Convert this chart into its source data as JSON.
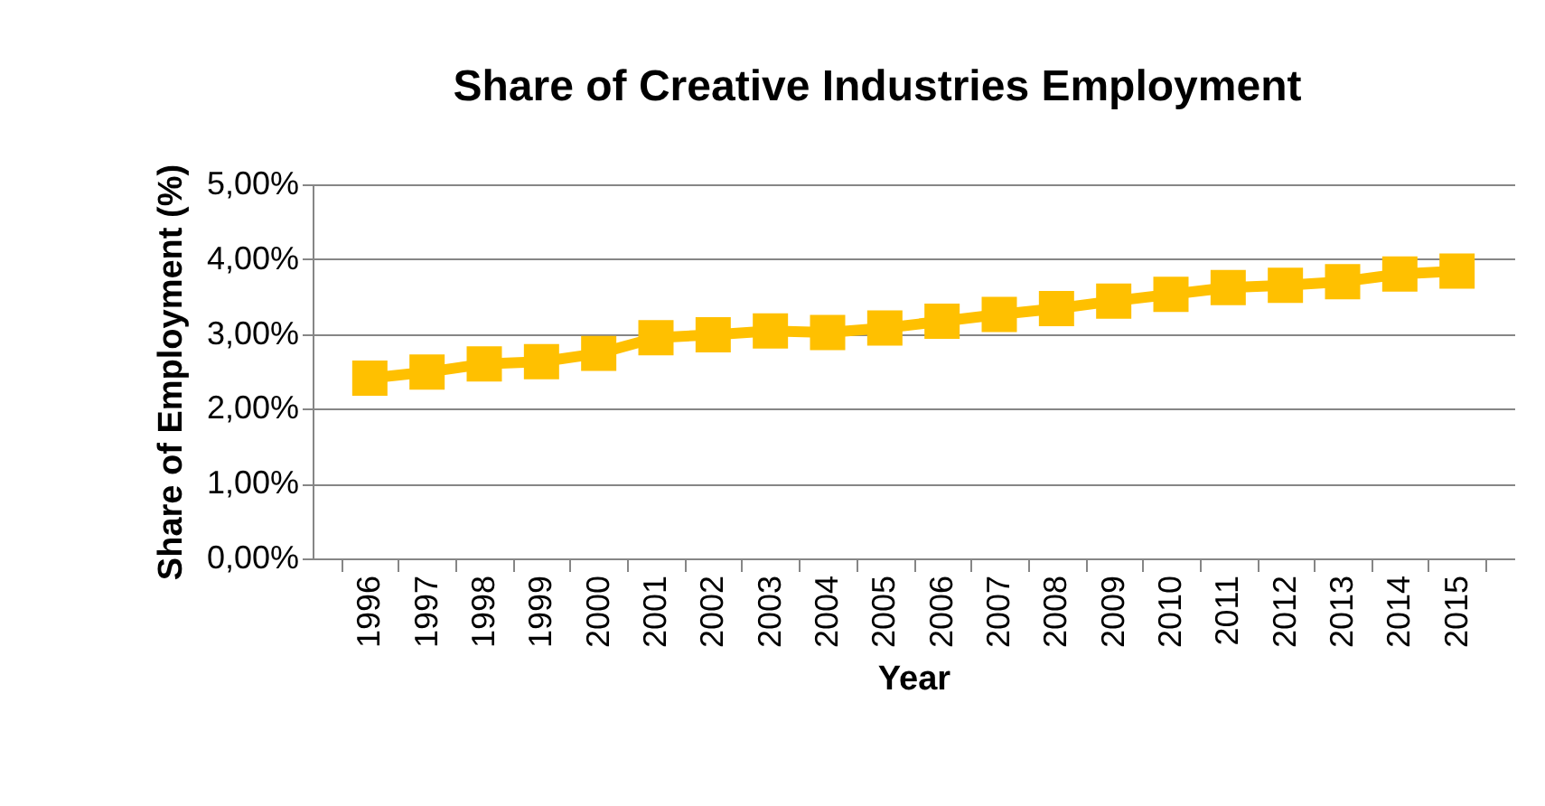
{
  "chart_data": {
    "type": "line",
    "title": "Share of Creative Industries Employment",
    "xlabel": "Year",
    "ylabel": "Share of Employment (%)",
    "categories": [
      "1996",
      "1997",
      "1998",
      "1999",
      "2000",
      "2001",
      "2002",
      "2003",
      "2004",
      "2005",
      "2006",
      "2007",
      "2008",
      "2009",
      "2010",
      "2011",
      "2012",
      "2013",
      "2014",
      "2015"
    ],
    "series": [
      {
        "color": "#ffc000",
        "values": [
          2.41,
          2.49,
          2.6,
          2.63,
          2.74,
          2.95,
          2.99,
          3.04,
          3.02,
          3.08,
          3.17,
          3.26,
          3.34,
          3.44,
          3.53,
          3.62,
          3.65,
          3.7,
          3.8,
          3.84
        ]
      }
    ],
    "ylim": [
      0,
      5
    ],
    "yticks": [
      {
        "value": 0,
        "label": "0,00%"
      },
      {
        "value": 1,
        "label": "1,00%"
      },
      {
        "value": 2,
        "label": "2,00%"
      },
      {
        "value": 3,
        "label": "3,00%"
      },
      {
        "value": 4,
        "label": "4,00%"
      },
      {
        "value": 5,
        "label": "5,00%"
      }
    ],
    "grid": "y",
    "marker": "square",
    "line_style": "solid",
    "legend": false
  }
}
